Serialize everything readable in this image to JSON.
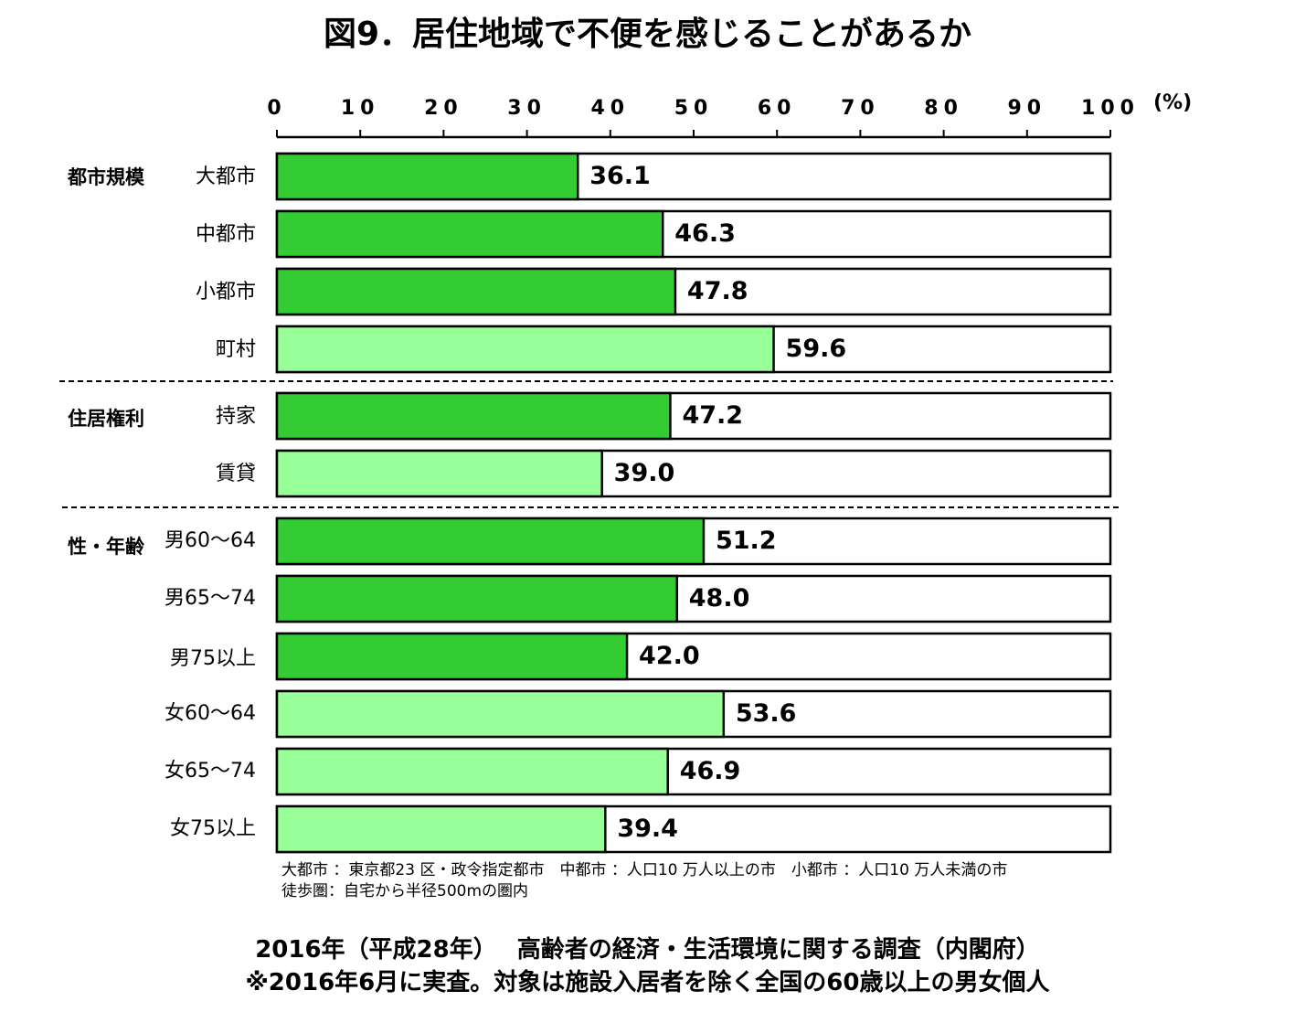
{
  "title": "図9．居住地域で不便を感じることがあるか",
  "unit_label": "(%)",
  "chart_data": {
    "type": "bar",
    "orientation": "horizontal",
    "xlim": [
      0,
      100
    ],
    "x_ticks": [
      "0",
      "10",
      "20",
      "30",
      "40",
      "50",
      "60",
      "70",
      "80",
      "90",
      "100"
    ],
    "groups": [
      {
        "name": "都市規模",
        "categories": [
          "大都市",
          "中都市",
          "小都市",
          "町村"
        ]
      },
      {
        "name": "住居権利",
        "categories": [
          "持家",
          "賃貸"
        ]
      },
      {
        "name": "性・年齢",
        "categories": [
          "男60～64",
          "男65～74",
          "男75以上",
          "女60～64",
          "女65～74",
          "女75以上"
        ]
      }
    ],
    "categories": [
      "大都市",
      "中都市",
      "小都市",
      "町村",
      "持家",
      "賃貸",
      "男60～64",
      "男65～74",
      "男75以上",
      "女60～64",
      "女65～74",
      "女75以上"
    ],
    "values": [
      36.1,
      46.3,
      47.8,
      59.6,
      47.2,
      39.0,
      51.2,
      48.0,
      42.0,
      53.6,
      46.9,
      39.4
    ],
    "value_labels": [
      "36.1",
      "46.3",
      "47.8",
      "59.6",
      "47.2",
      "39.0",
      "51.2",
      "48.0",
      "42.0",
      "53.6",
      "46.9",
      "39.4"
    ],
    "highlight": [
      false,
      false,
      false,
      true,
      false,
      true,
      false,
      false,
      false,
      true,
      true,
      true
    ],
    "colors": {
      "dark_green": "#33cc33",
      "light_green": "#99ff99",
      "remainder": "#ffffff",
      "outline": "#000000"
    },
    "grid": false,
    "legend": "none"
  },
  "notes": [
    "大都市 ：東京都23 区・政令指定都市　中都市 ：人口10 万人以上の市　小都市 ：人口10 万人未満の市",
    "徒歩圏：自宅から半径500mの圏内"
  ],
  "source": {
    "line1": "2016年（平成28年）　 高齢者の経済・生活環境に関する調査（内閣府）",
    "line2": "※2016年6月に実査。対象は施設入居者を除く全国の60歳以上の男女個人"
  }
}
